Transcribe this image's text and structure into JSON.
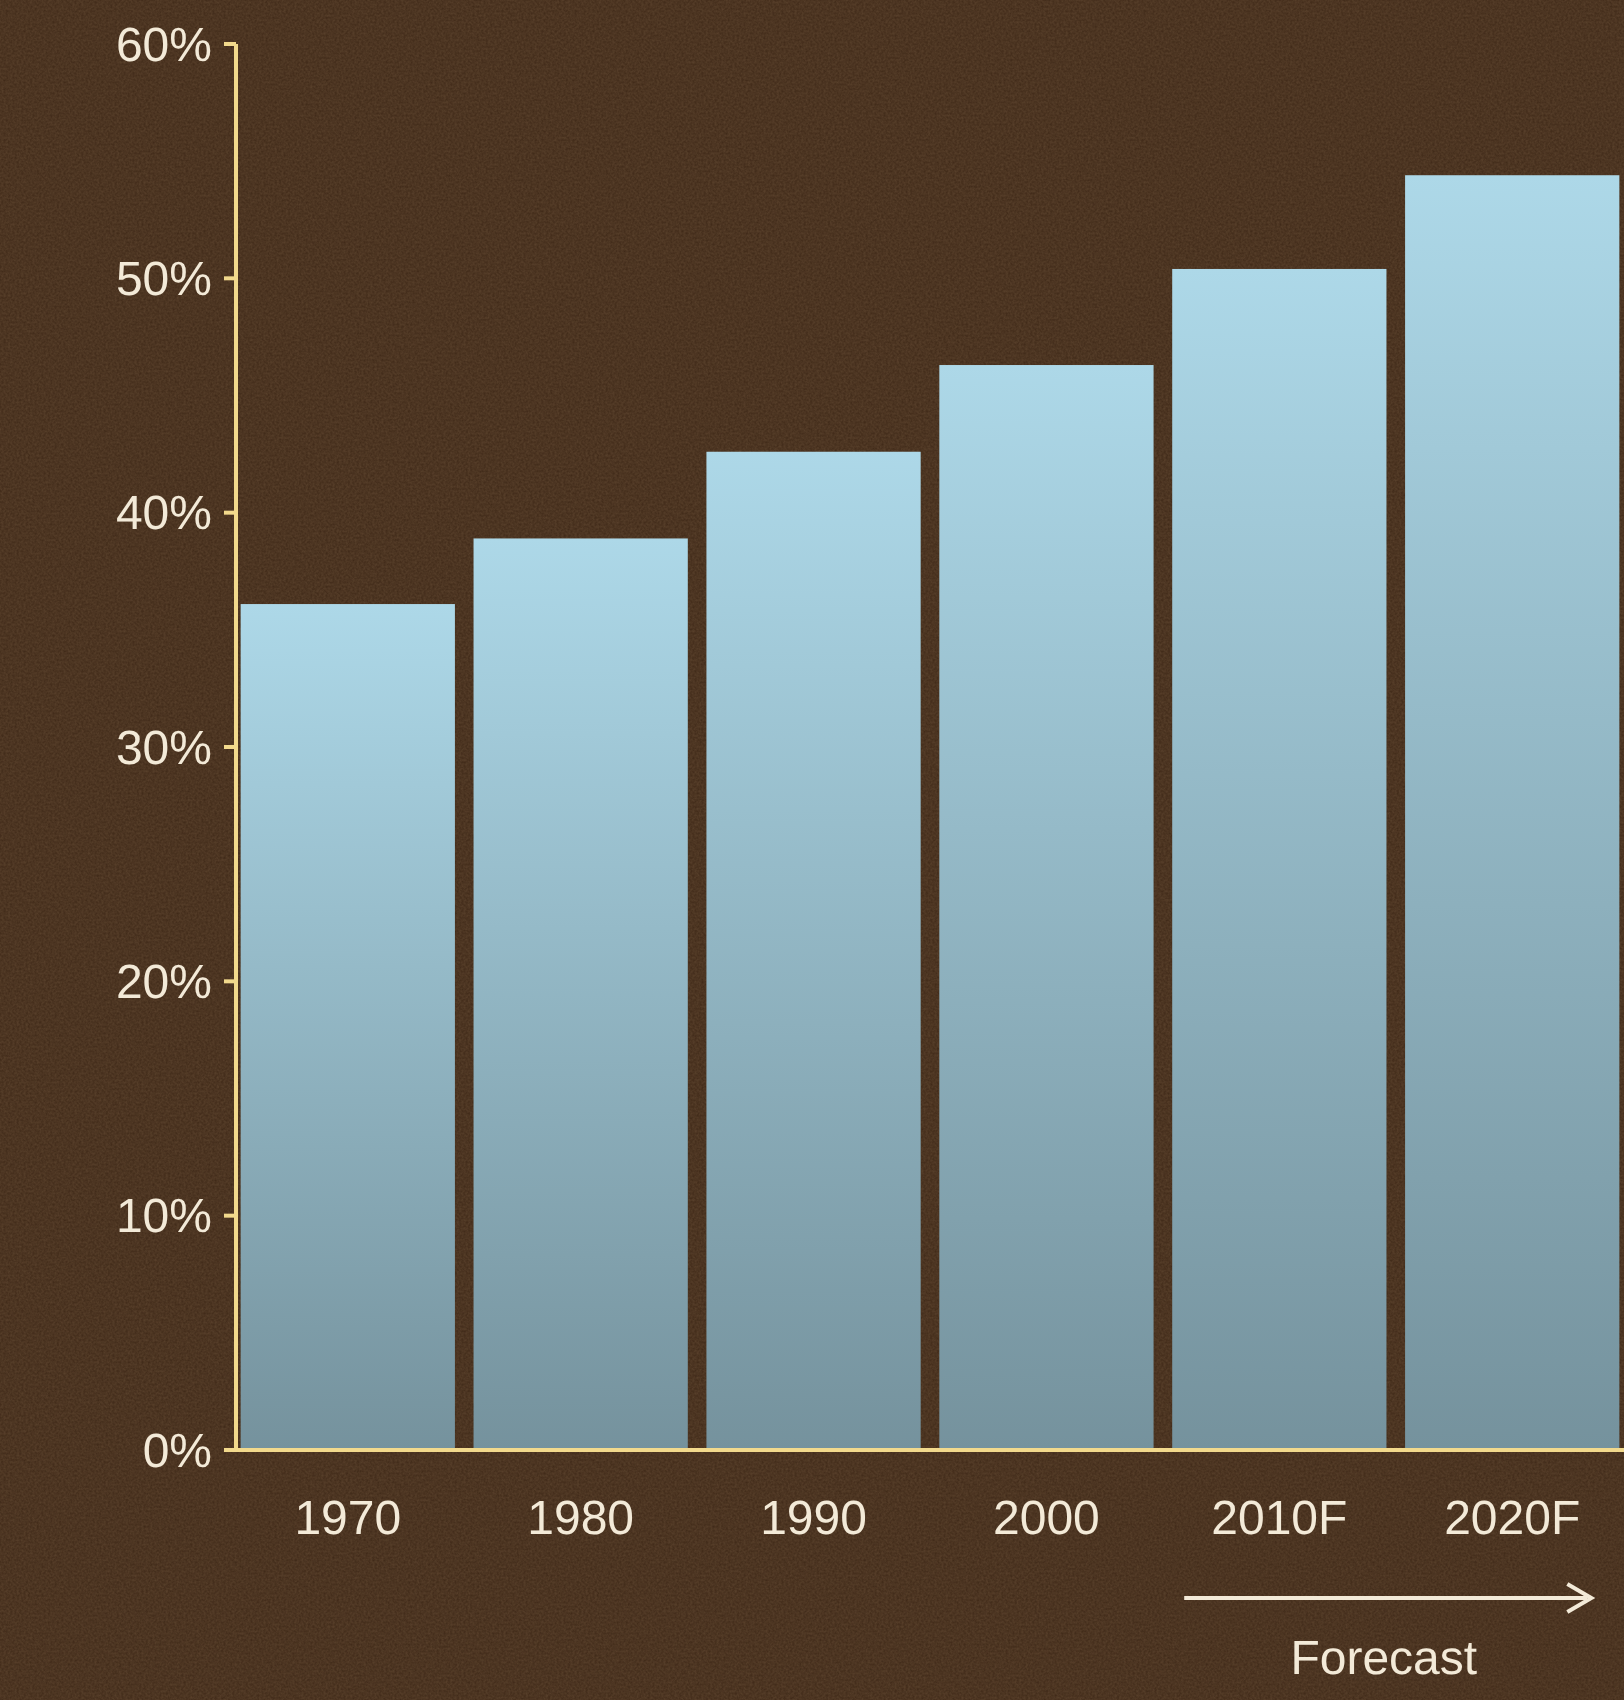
{
  "chart_data": {
    "type": "bar",
    "categories": [
      "1970",
      "1980",
      "1990",
      "2000",
      "2010F",
      "2020F"
    ],
    "values": [
      36.1,
      38.9,
      42.6,
      46.3,
      50.4,
      54.4
    ],
    "color": "#add8e8",
    "ylim": [
      0,
      60
    ],
    "yticks": [
      {
        "value": 0,
        "label": "0%"
      },
      {
        "value": 10,
        "label": "10%"
      },
      {
        "value": 20,
        "label": "20%"
      },
      {
        "value": 30,
        "label": "30%"
      },
      {
        "value": 40,
        "label": "40%"
      },
      {
        "value": 50,
        "label": "50%"
      },
      {
        "value": 60,
        "label": "60%"
      }
    ],
    "grid": false,
    "annotations": [
      "Forecast"
    ]
  }
}
